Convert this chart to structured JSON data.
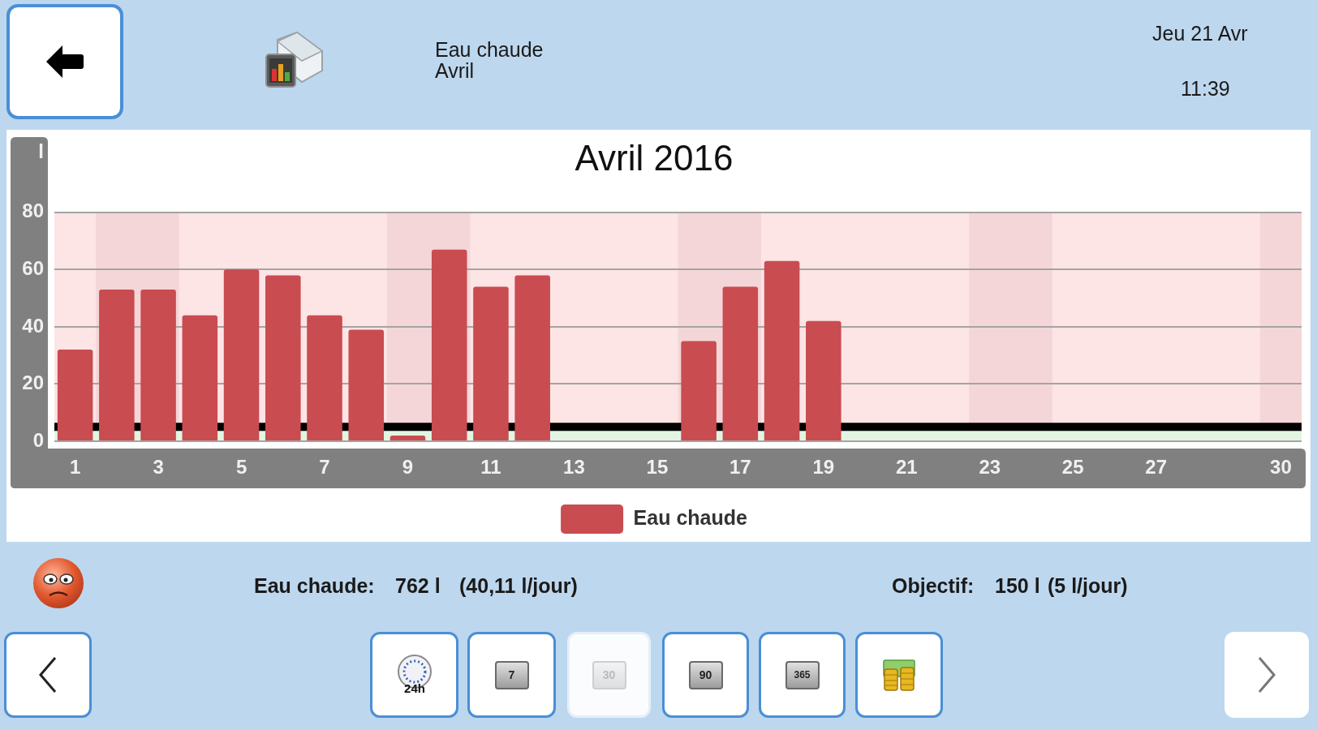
{
  "chart_data": {
    "type": "bar",
    "title": "Avril 2016",
    "ylabel": "l",
    "x": [
      1,
      2,
      3,
      4,
      5,
      6,
      7,
      8,
      9,
      10,
      11,
      12,
      13,
      14,
      15,
      16,
      17,
      18,
      19
    ],
    "series": [
      {
        "name": "Eau chaude",
        "color": "#c94c51",
        "values": [
          32,
          53,
          53,
          44,
          60,
          58,
          44,
          39,
          2,
          67,
          54,
          58,
          0,
          0,
          0,
          35,
          54,
          63,
          42
        ]
      }
    ],
    "xlim": [
      0.5,
      30.5
    ],
    "xticks": [
      1,
      3,
      5,
      7,
      9,
      11,
      13,
      15,
      17,
      19,
      21,
      23,
      25,
      27,
      30
    ],
    "ylim": [
      0,
      80
    ],
    "yticks": [
      0,
      20,
      40,
      60,
      80
    ],
    "grid": "y",
    "legend": "bottom",
    "ref_lines": [
      {
        "axis": "y",
        "value": 5,
        "color": "#000000"
      }
    ],
    "bands": [
      {
        "axis": "y",
        "from": 5,
        "to": 80,
        "color": "#fde4e5"
      },
      {
        "axis": "x",
        "from": 1.5,
        "to": 3.5,
        "color": "#f4d6d8"
      },
      {
        "axis": "x",
        "from": 8.5,
        "to": 10.5,
        "color": "#f4d6d8"
      },
      {
        "axis": "x",
        "from": 15.5,
        "to": 17.5,
        "color": "#f4d6d8"
      },
      {
        "axis": "x",
        "from": 22.5,
        "to": 24.5,
        "color": "#f4d6d8"
      },
      {
        "axis": "x",
        "from": 29.5,
        "to": 30.5,
        "color": "#f4d6d8"
      },
      {
        "axis": "y",
        "from": 0,
        "to": 5,
        "color": "#e2f5e2"
      }
    ],
    "annotations": [
      "Eau chaude",
      "Avril",
      "Jeu 21 Avr",
      "11:39",
      "Eau chaude:",
      "762 l",
      "(40,11 l/jour)",
      "Objectif:",
      "150 l",
      "(5 l/jour)",
      "24h",
      "7",
      "30",
      "90",
      "365"
    ]
  }
}
